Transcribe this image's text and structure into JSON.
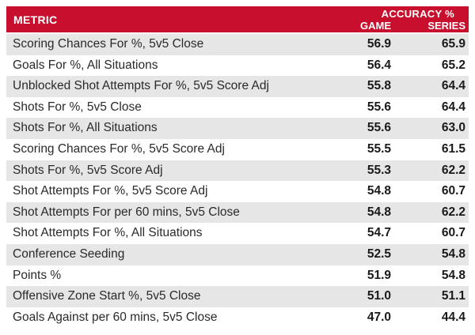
{
  "header": {
    "metric_label": "METRIC",
    "accuracy_label": "ACCURACY %",
    "game_label": "GAME",
    "series_label": "SERIES"
  },
  "colors": {
    "header_bg": "#c8102e",
    "row_shade": "#e6e6e6"
  },
  "chart_data": {
    "type": "table",
    "columns": [
      "METRIC",
      "GAME",
      "SERIES"
    ],
    "rows": [
      {
        "metric": "Scoring Chances For %, 5v5 Close",
        "game": "56.9",
        "series": "65.9"
      },
      {
        "metric": "Goals For %, All Situations",
        "game": "56.4",
        "series": "65.2"
      },
      {
        "metric": "Unblocked Shot Attempts For %,  5v5 Score Adj",
        "game": "55.8",
        "series": "64.4"
      },
      {
        "metric": "Shots For %, 5v5 Close",
        "game": "55.6",
        "series": "64.4"
      },
      {
        "metric": "Shots For %, All Situations",
        "game": "55.6",
        "series": "63.0"
      },
      {
        "metric": "Scoring Chances For %, 5v5 Score Adj",
        "game": "55.5",
        "series": "61.5"
      },
      {
        "metric": "Shots For %, 5v5 Score Adj",
        "game": "55.3",
        "series": "62.2"
      },
      {
        "metric": "Shot Attempts For %, 5v5 Score Adj",
        "game": "54.8",
        "series": "60.7"
      },
      {
        "metric": "Shot Attempts For per 60 mins, 5v5 Close",
        "game": "54.8",
        "series": "62.2"
      },
      {
        "metric": "Shot Attempts For %, All Situations",
        "game": "54.7",
        "series": "60.7"
      },
      {
        "metric": "Conference Seeding",
        "game": "52.5",
        "series": "54.8"
      },
      {
        "metric": "Points %",
        "game": "51.9",
        "series": "54.8"
      },
      {
        "metric": "Offensive Zone Start %, 5v5 Close",
        "game": "51.0",
        "series": "51.1"
      },
      {
        "metric": "Goals Against per 60 mins, 5v5 Close",
        "game": "47.0",
        "series": "44.4"
      }
    ]
  }
}
